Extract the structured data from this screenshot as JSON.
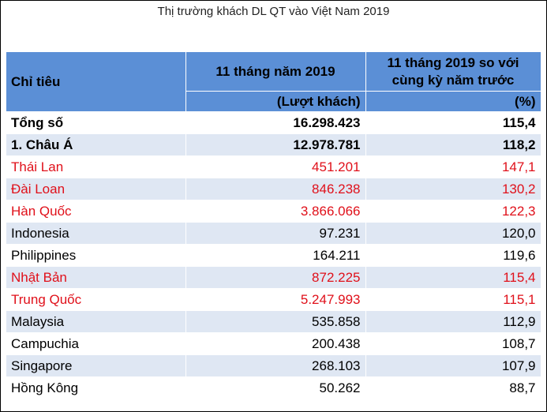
{
  "title": "Thị trường khách DL QT vào Việt Nam 2019",
  "table": {
    "headers": {
      "col1": "Chỉ tiêu",
      "col2": "11 tháng năm 2019",
      "col3_line1": "11 tháng 2019 so với",
      "col3_line2": "cùng kỳ năm trước",
      "col2_unit": "(Lượt khách)",
      "col3_unit": "(%)"
    },
    "rows": [
      {
        "label": "Tổng số",
        "visitors": "16.298.423",
        "change": "115,4"
      },
      {
        "label": "1. Châu Á",
        "visitors": "12.978.781",
        "change": "118,2"
      },
      {
        "label": "Thái Lan",
        "visitors": "451.201",
        "change": "147,1"
      },
      {
        "label": "Đài Loan",
        "visitors": "846.238",
        "change": "130,2"
      },
      {
        "label": "Hàn Quốc",
        "visitors": "3.866.066",
        "change": "122,3"
      },
      {
        "label": "Indonesia",
        "visitors": "97.231",
        "change": "120,0"
      },
      {
        "label": "Philippines",
        "visitors": "164.211",
        "change": "119,6"
      },
      {
        "label": "Nhật Bản",
        "visitors": "872.225",
        "change": "115,4"
      },
      {
        "label": "Trung Quốc",
        "visitors": "5.247.993",
        "change": "115,1"
      },
      {
        "label": "Malaysia",
        "visitors": "535.858",
        "change": "112,9"
      },
      {
        "label": "Campuchia",
        "visitors": "200.438",
        "change": "108,7"
      },
      {
        "label": "Singapore",
        "visitors": "268.103",
        "change": "107,9"
      },
      {
        "label": "Hồng Kông",
        "visitors": "50.262",
        "change": "88,7"
      }
    ]
  },
  "colors": {
    "header_bg": "#5b8fd6",
    "band_bg": "#dfe7f3",
    "highlight_text": "#e0101a"
  }
}
